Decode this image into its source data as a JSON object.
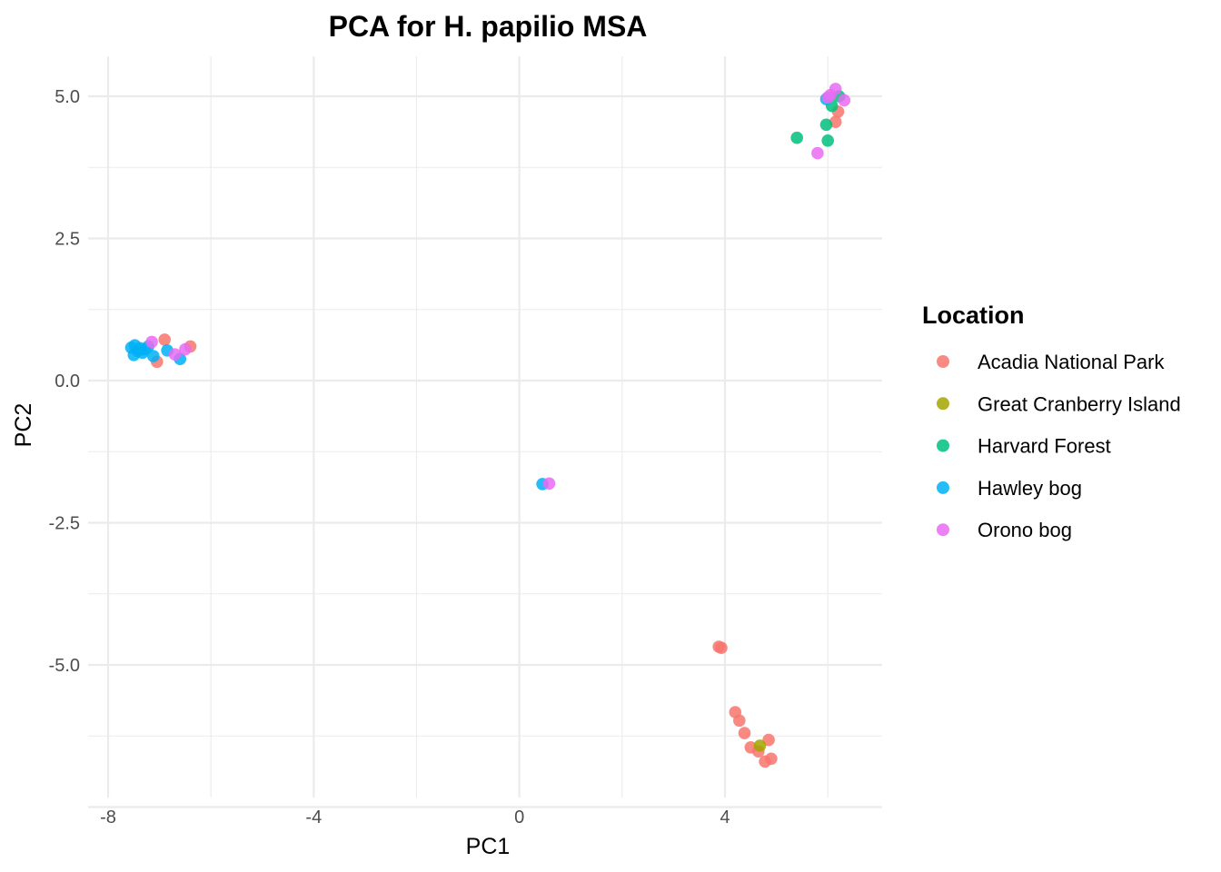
{
  "chart_data": {
    "type": "scatter",
    "title": "PCA for H. papilio MSA",
    "xlabel": "PC1",
    "ylabel": "PC2",
    "xlim": [
      -8.0,
      7.0
    ],
    "ylim": [
      -7.0,
      5.7
    ],
    "x_ticks": [
      -8,
      -4,
      0,
      4
    ],
    "y_ticks": [
      5.0,
      2.5,
      0.0,
      -2.5,
      -5.0
    ],
    "x_tick_labels": [
      "-8",
      "-4",
      "0",
      "4"
    ],
    "y_tick_labels": [
      "5.0",
      "2.5",
      "0.0",
      "-2.5",
      "-5.0"
    ],
    "grid": true,
    "legend": {
      "title": "Location",
      "position": "right"
    },
    "series": [
      {
        "name": "Acadia National Park",
        "color": "#F8766D",
        "points": [
          {
            "x": -6.9,
            "y": 0.72
          },
          {
            "x": -7.05,
            "y": 0.33
          },
          {
            "x": -6.4,
            "y": 0.6
          },
          {
            "x": 3.88,
            "y": -4.68
          },
          {
            "x": 3.93,
            "y": -4.7
          },
          {
            "x": 4.2,
            "y": -5.83
          },
          {
            "x": 4.28,
            "y": -5.98
          },
          {
            "x": 4.38,
            "y": -6.2
          },
          {
            "x": 4.5,
            "y": -6.45
          },
          {
            "x": 4.65,
            "y": -6.52
          },
          {
            "x": 4.78,
            "y": -6.7
          },
          {
            "x": 4.9,
            "y": -6.65
          },
          {
            "x": 4.85,
            "y": -6.32
          },
          {
            "x": 6.15,
            "y": 4.55
          },
          {
            "x": 6.2,
            "y": 4.73
          }
        ]
      },
      {
        "name": "Great Cranberry Island",
        "color": "#A3A500",
        "points": [
          {
            "x": 4.68,
            "y": -6.42
          }
        ]
      },
      {
        "name": "Harvard Forest",
        "color": "#00BF7D",
        "points": [
          {
            "x": 5.4,
            "y": 4.27
          },
          {
            "x": 5.97,
            "y": 4.5
          },
          {
            "x": 6.0,
            "y": 4.22
          },
          {
            "x": 6.08,
            "y": 4.83
          },
          {
            "x": 6.22,
            "y": 5.0
          }
        ]
      },
      {
        "name": "Hawley bog",
        "color": "#00B0F6",
        "points": [
          {
            "x": -7.55,
            "y": 0.58
          },
          {
            "x": -7.5,
            "y": 0.45
          },
          {
            "x": -7.48,
            "y": 0.62
          },
          {
            "x": -7.42,
            "y": 0.52
          },
          {
            "x": -7.38,
            "y": 0.57
          },
          {
            "x": -7.33,
            "y": 0.49
          },
          {
            "x": -7.28,
            "y": 0.55
          },
          {
            "x": -7.22,
            "y": 0.6
          },
          {
            "x": -7.12,
            "y": 0.43
          },
          {
            "x": -6.85,
            "y": 0.53
          },
          {
            "x": -6.6,
            "y": 0.38
          },
          {
            "x": 0.45,
            "y": -1.82
          },
          {
            "x": 5.97,
            "y": 4.95
          }
        ]
      },
      {
        "name": "Orono bog",
        "color": "#E76BF3",
        "points": [
          {
            "x": -7.15,
            "y": 0.68
          },
          {
            "x": -6.7,
            "y": 0.46
          },
          {
            "x": -6.5,
            "y": 0.55
          },
          {
            "x": 0.58,
            "y": -1.81
          },
          {
            "x": 5.8,
            "y": 4.0
          },
          {
            "x": 6.0,
            "y": 4.98
          },
          {
            "x": 6.05,
            "y": 5.02
          },
          {
            "x": 6.15,
            "y": 5.13
          },
          {
            "x": 6.32,
            "y": 4.93
          }
        ]
      }
    ]
  }
}
